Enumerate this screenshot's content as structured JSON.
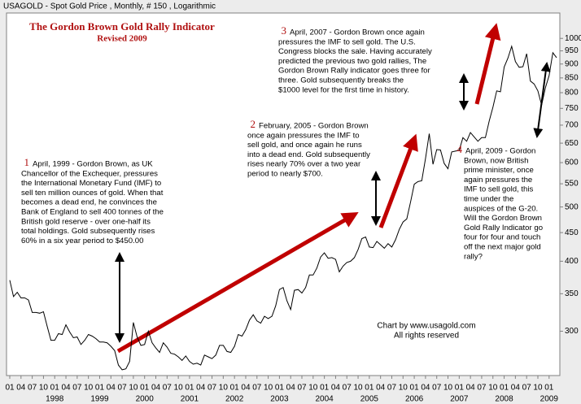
{
  "chart_data": {
    "type": "line",
    "header": "USAGOLD - Spot Gold Price , Monthly, # 150 , Logarithmic",
    "title": "The Gordon Brown Gold Rally Indicator",
    "subtitle": "Revised 2009",
    "credit": [
      "Chart by www.usagold.com",
      "All rights reserved"
    ],
    "annotations": [
      {
        "number": "1",
        "lines": [
          "April, 1999 - Gordon Brown, as UK",
          "Chancellor of the Exchequer, pressures",
          "the International Monetary Fund (IMF) to",
          "sell ten million ounces of gold.  When that",
          "becomes a dead end, he convinces the",
          "Bank of England to sell 400 tonnes of the",
          "British gold reserve - over one-half its",
          "total holdings.  Gold subsequently rises",
          "60% in a six year period to $450.00"
        ]
      },
      {
        "number": "2",
        "lines": [
          "February, 2005 - Gordon Brown",
          "once again pressures the IMF to",
          "sell gold, and once again he runs",
          "into a dead end.  Gold subsequently",
          "rises nearly 70% over a two year",
          "period to nearly $700."
        ]
      },
      {
        "number": "3",
        "lines": [
          "April, 2007 - Gordon Brown once again",
          "pressures the IMF to sell gold.  The U.S.",
          "Congress blocks the sale.  Having accurately",
          "predicted the previous two gold rallies, The",
          "Gordon Brown Rally indicator goes three for",
          "three.  Gold subsequently breaks the",
          "$1000 level for the first time in history."
        ]
      },
      {
        "number": "4",
        "lines": [
          "April, 2009 - Gordon",
          "Brown, now British",
          "prime minister, once",
          "again pressures the",
          "IMF to sell gold, this",
          "time under the",
          "auspices of the G-20.",
          "Will the Gordon Brown",
          "Gold Rally Indicator go",
          "four for four and touch",
          "off the next major gold",
          "rally?"
        ]
      }
    ],
    "categories": [
      "01",
      null,
      null,
      "04",
      null,
      null,
      "07",
      null,
      null,
      "10",
      null,
      null,
      "01",
      null,
      null,
      "04",
      null,
      null,
      "07",
      null,
      null,
      "10",
      null,
      null,
      "01",
      null,
      null,
      "04",
      null,
      null,
      "07",
      null,
      null,
      "10",
      null,
      null,
      "01",
      null,
      null,
      "04",
      null,
      null,
      "07",
      null,
      null,
      "10",
      null,
      null,
      "01",
      null,
      null,
      "04",
      null,
      null,
      "07",
      null,
      null,
      "10",
      null,
      null,
      "01",
      null,
      null,
      "04",
      null,
      null,
      "07",
      null,
      null,
      "10",
      null,
      null,
      "01",
      null,
      null,
      "04",
      null,
      null,
      "07",
      null,
      null,
      "10",
      null,
      null,
      "01",
      null,
      null,
      "04",
      null,
      null,
      "07",
      null,
      null,
      "10",
      null,
      null,
      "01",
      null,
      null,
      "04",
      null,
      null,
      "07",
      null,
      null,
      "10",
      null,
      null,
      "01",
      null,
      null,
      "04",
      null,
      null,
      "07",
      null,
      null,
      "10",
      null,
      null,
      "01",
      null,
      null,
      "04",
      null,
      null,
      "07",
      null,
      null,
      "10",
      null,
      null,
      "01",
      null,
      null,
      "04",
      null,
      null,
      "07",
      null,
      null,
      "10",
      null,
      null,
      "01",
      null,
      null
    ],
    "years": [
      "1998",
      "1999",
      "2000",
      "2001",
      "2002",
      "2003",
      "2004",
      "2005",
      "2006",
      "2007",
      "2008",
      "2009"
    ],
    "values": [
      370,
      346,
      352,
      344,
      344,
      341,
      324,
      324,
      323,
      325,
      306,
      289,
      289,
      297,
      296,
      308,
      299,
      292,
      293,
      284,
      289,
      296,
      294,
      291,
      287,
      287,
      286,
      282,
      277,
      261,
      256,
      257,
      265,
      311,
      293,
      283,
      284,
      300,
      286,
      280,
      275,
      286,
      281,
      274,
      273,
      270,
      266,
      271,
      265,
      262,
      263,
      261,
      272,
      270,
      268,
      272,
      283,
      283,
      276,
      275,
      282,
      296,
      294,
      302,
      314,
      321,
      313,
      310,
      319,
      316,
      319,
      333,
      356,
      359,
      340,
      328,
      355,
      356,
      351,
      359,
      378,
      378,
      389,
      407,
      414,
      405,
      406,
      403,
      383,
      392,
      398,
      400,
      406,
      420,
      439,
      442,
      424,
      423,
      434,
      428,
      422,
      430,
      424,
      437,
      456,
      470,
      476,
      510,
      549,
      555,
      557,
      610,
      676,
      596,
      633,
      632,
      598,
      585,
      627,
      629,
      631,
      665,
      655,
      679,
      667,
      655,
      665,
      665,
      712,
      754,
      806,
      803,
      889,
      922,
      968,
      909,
      888,
      890,
      939,
      839,
      829,
      806,
      760,
      816,
      858,
      943,
      924
    ],
    "color": "#000000",
    "log_scale": true,
    "ylim": [
      250,
      1110
    ],
    "yticks": [
      300,
      350,
      400,
      450,
      500,
      550,
      600,
      650,
      700,
      750,
      800,
      850,
      900,
      950,
      1000
    ]
  }
}
